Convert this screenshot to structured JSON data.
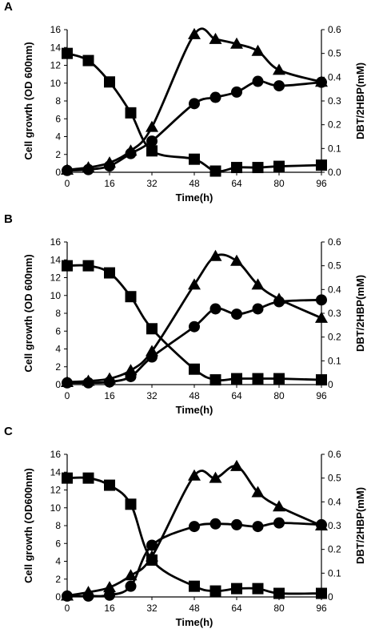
{
  "chart_data": [
    {
      "panel": "A",
      "type": "line",
      "xlabel": "Time(h)",
      "ylabel_left": "Cell growth (OD 600nm)",
      "ylabel_right": "DBT/2HBP(mM)",
      "xticks": [
        0,
        16,
        32,
        48,
        64,
        80,
        96
      ],
      "yticks_left": [
        0,
        2,
        4,
        6,
        8,
        10,
        12,
        14,
        16
      ],
      "yticks_right": [
        "0.0",
        "0.1",
        "0.2",
        "0.3",
        "0.4",
        "0.5",
        "0.6"
      ],
      "xlim": [
        0,
        96
      ],
      "ylim_left": [
        0,
        16
      ],
      "ylim_right": [
        0,
        0.6
      ],
      "series": [
        {
          "marker": "square",
          "axis": "right",
          "x": [
            0,
            8,
            16,
            24,
            32,
            48,
            56,
            64,
            72,
            80,
            96
          ],
          "y": [
            0.5,
            0.47,
            0.38,
            0.25,
            0.09,
            0.055,
            0.005,
            0.02,
            0.02,
            0.025,
            0.03
          ]
        },
        {
          "marker": "circle",
          "axis": "left",
          "x": [
            0,
            8,
            16,
            24,
            32,
            48,
            56,
            64,
            72,
            80,
            96
          ],
          "y": [
            0.2,
            0.3,
            0.7,
            2.1,
            3.5,
            7.7,
            8.4,
            9.0,
            10.2,
            9.7,
            10.1
          ]
        },
        {
          "marker": "triangle",
          "axis": "right",
          "x": [
            0,
            8,
            16,
            24,
            32,
            48,
            56,
            64,
            72,
            80,
            96
          ],
          "y": [
            0.01,
            0.02,
            0.04,
            0.09,
            0.19,
            0.58,
            0.56,
            0.54,
            0.51,
            0.43,
            0.38
          ]
        }
      ]
    },
    {
      "panel": "B",
      "type": "line",
      "xlabel": "Time(h)",
      "ylabel_left": "Cell growth (OD 600nm)",
      "ylabel_right": "DBT/2HBP(mM)",
      "xticks": [
        0,
        16,
        32,
        48,
        64,
        80,
        96
      ],
      "yticks_left": [
        0,
        2,
        4,
        6,
        8,
        10,
        12,
        14,
        16
      ],
      "yticks_right": [
        "0",
        "0.1",
        "0.2",
        "0.3",
        "0.4",
        "0.5",
        "0.6"
      ],
      "xlim": [
        0,
        96
      ],
      "ylim_left": [
        0,
        16
      ],
      "ylim_right": [
        0,
        0.6
      ],
      "series": [
        {
          "marker": "square",
          "axis": "right",
          "x": [
            0,
            8,
            16,
            24,
            32,
            48,
            56,
            64,
            72,
            80,
            96
          ],
          "y": [
            0.5,
            0.5,
            0.47,
            0.37,
            0.235,
            0.065,
            0.02,
            0.025,
            0.025,
            0.025,
            0.02
          ]
        },
        {
          "marker": "circle",
          "axis": "left",
          "x": [
            0,
            8,
            16,
            24,
            32,
            48,
            56,
            64,
            72,
            80,
            96
          ],
          "y": [
            0.2,
            0.2,
            0.3,
            0.9,
            3.1,
            6.5,
            8.5,
            7.9,
            8.5,
            9.3,
            9.5
          ]
        },
        {
          "marker": "triangle",
          "axis": "right",
          "x": [
            0,
            8,
            16,
            24,
            32,
            48,
            56,
            64,
            72,
            80,
            96
          ],
          "y": [
            0.01,
            0.015,
            0.025,
            0.06,
            0.14,
            0.42,
            0.54,
            0.52,
            0.42,
            0.36,
            0.28
          ]
        }
      ]
    },
    {
      "panel": "C",
      "type": "line",
      "xlabel": "Time(h)",
      "ylabel_left": "Cell growth (OD600nm)",
      "ylabel_right": "DBT/2HBP(mM)",
      "xticks": [
        0,
        16,
        32,
        48,
        64,
        80,
        96
      ],
      "yticks_left": [
        0,
        2,
        4,
        6,
        8,
        10,
        12,
        14,
        16
      ],
      "yticks_right": [
        "0",
        "0.1",
        "0.2",
        "0.3",
        "0.4",
        "0.5",
        "0.6"
      ],
      "xlim": [
        0,
        96
      ],
      "ylim_left": [
        0,
        16
      ],
      "ylim_right": [
        0,
        0.6
      ],
      "series": [
        {
          "marker": "square",
          "axis": "right",
          "x": [
            0,
            8,
            16,
            24,
            32,
            48,
            56,
            64,
            72,
            80,
            96
          ],
          "y": [
            0.5,
            0.5,
            0.47,
            0.39,
            0.155,
            0.045,
            0.025,
            0.035,
            0.035,
            0.015,
            0.015
          ]
        },
        {
          "marker": "circle",
          "axis": "left",
          "x": [
            0,
            8,
            16,
            24,
            32,
            48,
            56,
            64,
            72,
            80,
            96
          ],
          "y": [
            0.1,
            0.1,
            0.2,
            1.2,
            5.8,
            7.9,
            8.2,
            8.1,
            7.9,
            8.3,
            8.1
          ]
        },
        {
          "marker": "triangle",
          "axis": "right",
          "x": [
            0,
            8,
            16,
            24,
            32,
            48,
            56,
            64,
            72,
            80,
            96
          ],
          "y": [
            0.005,
            0.02,
            0.04,
            0.09,
            0.17,
            0.51,
            0.5,
            0.55,
            0.44,
            0.38,
            0.3
          ]
        }
      ]
    }
  ]
}
